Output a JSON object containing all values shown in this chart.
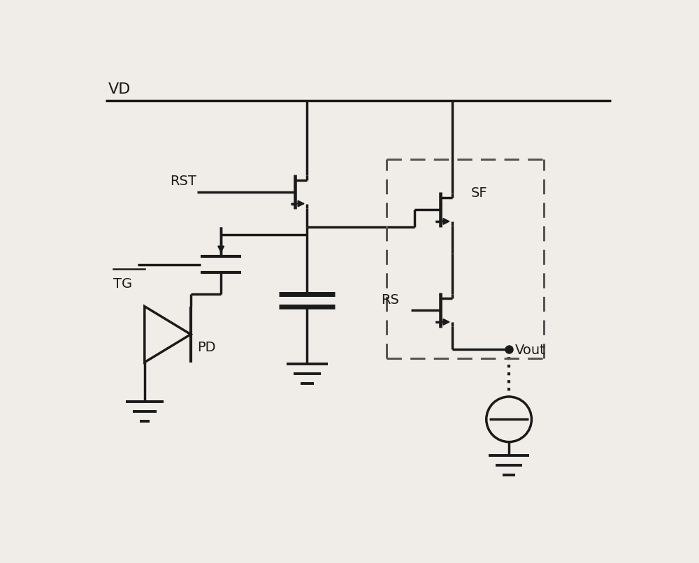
{
  "bg_color": "#f0ede8",
  "line_color": "#1a1a1a",
  "dashed_color": "#555555",
  "lw": 2.5,
  "vd_label": "VD",
  "rst_label": "RST",
  "tg_label": "TG",
  "pd_label": "PD",
  "sf_label": "SF",
  "rs_label": "RS",
  "vout_label": "Vout"
}
